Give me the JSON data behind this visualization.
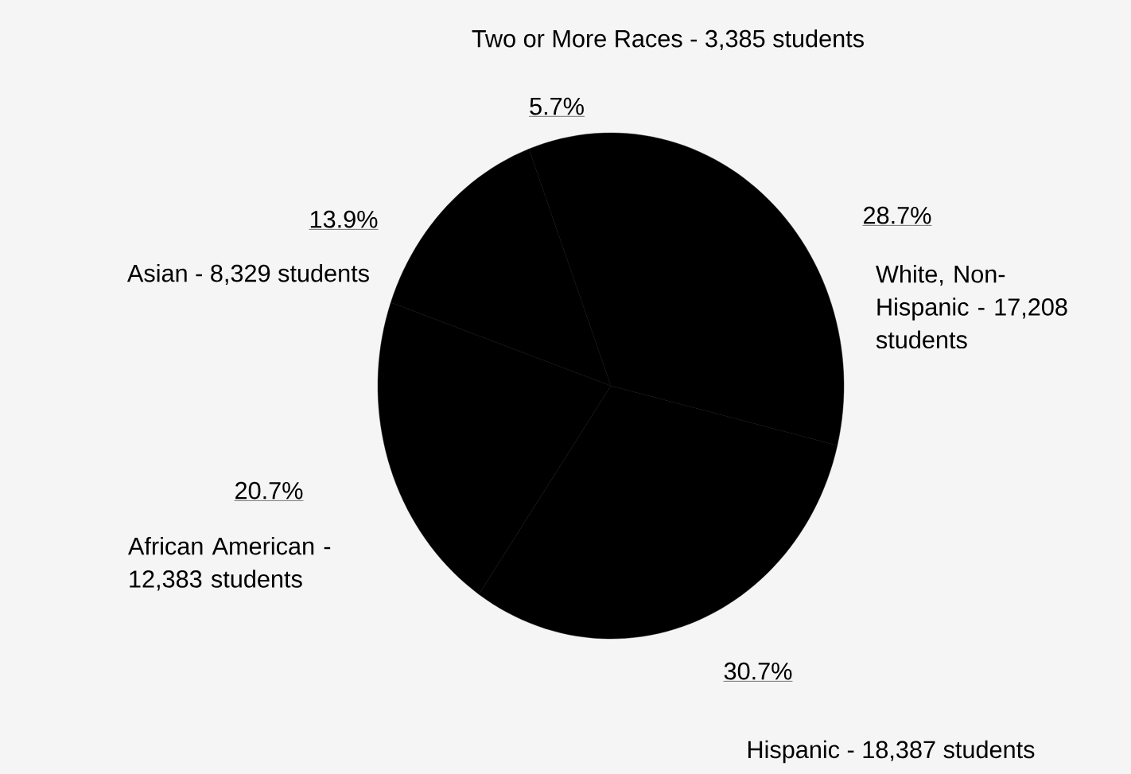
{
  "chart_data": {
    "type": "pie",
    "categories": [
      "White, Non-Hispanic - 17,208 students",
      "Hispanic - 18,387 students",
      "African American - 12,383 students",
      "Asian - 8,329 students",
      "Two or More Races - 3,385 students"
    ],
    "values": [
      28.7,
      30.7,
      20.7,
      13.9,
      5.7
    ],
    "colors": [
      "#000000",
      "#000000",
      "#000000",
      "#000000",
      "#000000"
    ],
    "value_labels": [
      "28.7%",
      "30.7%",
      "20.7%",
      "13.9%",
      "5.7%"
    ]
  }
}
